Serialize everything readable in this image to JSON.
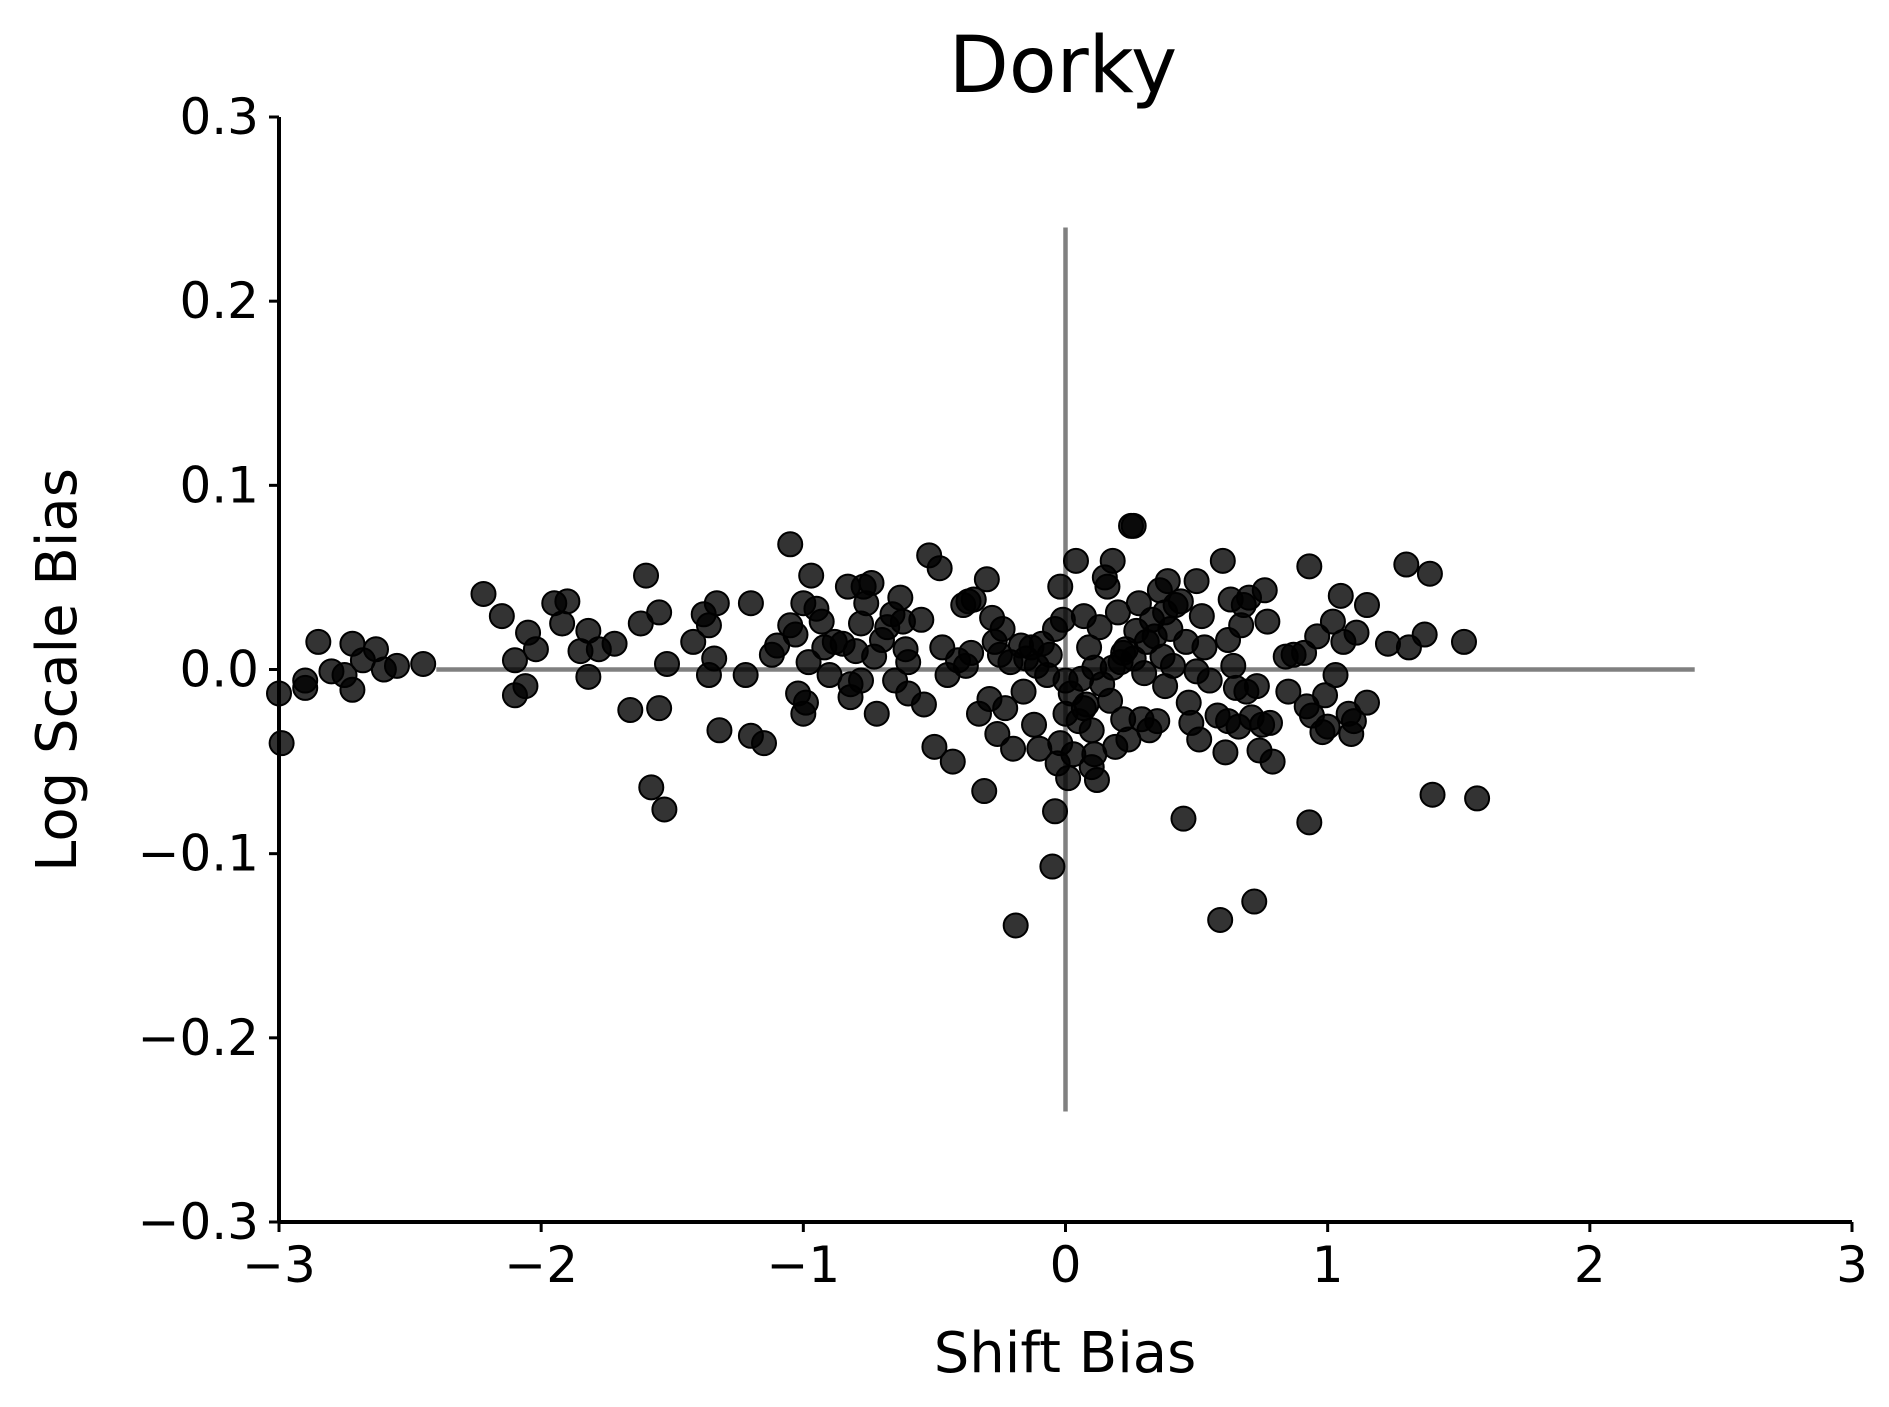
{
  "chart_data": {
    "type": "scatter",
    "title": "Dorky",
    "xlabel": "Shift Bias",
    "ylabel": "Log Scale Bias",
    "xlim": [
      -3,
      3
    ],
    "ylim": [
      -0.3,
      0.3
    ],
    "xticks": [
      -3,
      -2,
      -1,
      0,
      1,
      2,
      3
    ],
    "xtick_labels": [
      "−3",
      "−2",
      "−1",
      "0",
      "1",
      "2",
      "3"
    ],
    "yticks": [
      0.3,
      0.2,
      0.1,
      0.0,
      -0.1,
      -0.2,
      -0.3
    ],
    "ytick_labels": [
      "0.3",
      "0.2",
      "0.1",
      "0.0",
      "−0.1",
      "−0.2",
      "−0.3"
    ],
    "grid": false,
    "reference_lines": {
      "horizontal": {
        "y": 0,
        "x_range": [
          -2.4,
          2.4
        ],
        "color": "#808080"
      },
      "vertical": {
        "x": 0,
        "y_range": [
          -0.24,
          0.24
        ],
        "color": "#808080"
      }
    },
    "marker_color": "#000000",
    "points": [
      [
        -3.0,
        -0.013
      ],
      [
        -2.99,
        -0.04
      ],
      [
        -2.9,
        -0.01
      ],
      [
        -2.9,
        -0.006
      ],
      [
        -2.85,
        0.015
      ],
      [
        -2.8,
        -0.001
      ],
      [
        -2.75,
        -0.003
      ],
      [
        -2.72,
        0.014
      ],
      [
        -2.72,
        -0.011
      ],
      [
        -2.68,
        0.005
      ],
      [
        -2.63,
        0.011
      ],
      [
        -2.6,
        0.0
      ],
      [
        -2.55,
        0.002
      ],
      [
        -2.45,
        0.003
      ],
      [
        -2.22,
        0.041
      ],
      [
        -2.15,
        0.029
      ],
      [
        -2.1,
        0.005
      ],
      [
        -2.1,
        -0.014
      ],
      [
        -2.06,
        -0.009
      ],
      [
        -2.05,
        0.02
      ],
      [
        -2.02,
        0.011
      ],
      [
        -1.95,
        0.036
      ],
      [
        -1.92,
        0.025
      ],
      [
        -1.9,
        0.037
      ],
      [
        -1.85,
        0.01
      ],
      [
        -1.82,
        0.021
      ],
      [
        -1.82,
        -0.004
      ],
      [
        -1.78,
        0.011
      ],
      [
        -1.72,
        0.014
      ],
      [
        -1.66,
        -0.022
      ],
      [
        -1.62,
        0.025
      ],
      [
        -1.6,
        0.051
      ],
      [
        -1.58,
        -0.064
      ],
      [
        -1.55,
        0.031
      ],
      [
        -1.55,
        -0.021
      ],
      [
        -1.53,
        -0.076
      ],
      [
        -1.52,
        0.003
      ],
      [
        -1.42,
        0.015
      ],
      [
        -1.38,
        0.03
      ],
      [
        -1.36,
        0.024
      ],
      [
        -1.36,
        -0.003
      ],
      [
        -1.34,
        0.006
      ],
      [
        -1.33,
        0.036
      ],
      [
        -1.32,
        -0.033
      ],
      [
        -1.22,
        -0.003
      ],
      [
        -1.2,
        0.036
      ],
      [
        -1.2,
        -0.036
      ],
      [
        -1.15,
        -0.04
      ],
      [
        -1.12,
        0.008
      ],
      [
        -1.1,
        0.013
      ],
      [
        -1.05,
        0.068
      ],
      [
        -1.05,
        0.024
      ],
      [
        -1.03,
        0.019
      ],
      [
        -1.02,
        -0.013
      ],
      [
        -1.0,
        0.036
      ],
      [
        -1.0,
        -0.024
      ],
      [
        -0.99,
        -0.018
      ],
      [
        -0.98,
        0.004
      ],
      [
        -0.97,
        0.051
      ],
      [
        -0.95,
        0.033
      ],
      [
        -0.93,
        0.026
      ],
      [
        -0.92,
        0.012
      ],
      [
        -0.9,
        -0.003
      ],
      [
        -0.88,
        0.015
      ],
      [
        -0.85,
        0.014
      ],
      [
        -0.83,
        0.045
      ],
      [
        -0.82,
        -0.008
      ],
      [
        -0.82,
        -0.015
      ],
      [
        -0.8,
        0.01
      ],
      [
        -0.78,
        0.025
      ],
      [
        -0.78,
        -0.006
      ],
      [
        -0.77,
        0.045
      ],
      [
        -0.76,
        0.036
      ],
      [
        -0.74,
        0.047
      ],
      [
        -0.73,
        0.007
      ],
      [
        -0.72,
        -0.024
      ],
      [
        -0.7,
        0.016
      ],
      [
        -0.68,
        0.023
      ],
      [
        -0.66,
        0.03
      ],
      [
        -0.65,
        -0.006
      ],
      [
        -0.63,
        0.039
      ],
      [
        -0.62,
        0.026
      ],
      [
        -0.61,
        0.011
      ],
      [
        -0.6,
        0.004
      ],
      [
        -0.6,
        -0.013
      ],
      [
        -0.55,
        0.027
      ],
      [
        -0.54,
        -0.019
      ],
      [
        -0.52,
        0.062
      ],
      [
        -0.5,
        -0.042
      ],
      [
        -0.48,
        0.055
      ],
      [
        -0.47,
        0.012
      ],
      [
        -0.45,
        -0.003
      ],
      [
        -0.43,
        -0.05
      ],
      [
        -0.41,
        0.005
      ],
      [
        -0.39,
        0.035
      ],
      [
        -0.38,
        0.002
      ],
      [
        -0.37,
        0.037
      ],
      [
        -0.36,
        0.009
      ],
      [
        -0.35,
        0.038
      ],
      [
        -0.33,
        -0.024
      ],
      [
        -0.31,
        -0.066
      ],
      [
        -0.3,
        0.049
      ],
      [
        -0.29,
        -0.016
      ],
      [
        -0.28,
        0.028
      ],
      [
        -0.27,
        0.015
      ],
      [
        -0.26,
        -0.035
      ],
      [
        -0.25,
        0.008
      ],
      [
        -0.24,
        0.022
      ],
      [
        -0.23,
        -0.021
      ],
      [
        -0.21,
        0.004
      ],
      [
        -0.2,
        -0.043
      ],
      [
        -0.19,
        -0.139
      ],
      [
        -0.17,
        0.013
      ],
      [
        -0.16,
        -0.012
      ],
      [
        -0.15,
        0.006
      ],
      [
        -0.13,
        0.012
      ],
      [
        -0.12,
        -0.03
      ],
      [
        -0.11,
        0.002
      ],
      [
        -0.1,
        -0.043
      ],
      [
        -0.09,
        0.014
      ],
      [
        -0.07,
        -0.003
      ],
      [
        -0.06,
        0.008
      ],
      [
        -0.05,
        -0.107
      ],
      [
        -0.04,
        -0.077
      ],
      [
        -0.04,
        0.022
      ],
      [
        -0.03,
        -0.051
      ],
      [
        -0.02,
        0.045
      ],
      [
        -0.02,
        -0.04
      ],
      [
        -0.01,
        0.027
      ],
      [
        0.0,
        -0.024
      ],
      [
        0.0,
        -0.006
      ],
      [
        0.01,
        -0.059
      ],
      [
        0.02,
        -0.013
      ],
      [
        0.03,
        -0.046
      ],
      [
        0.04,
        0.059
      ],
      [
        0.05,
        -0.028
      ],
      [
        0.06,
        -0.005
      ],
      [
        0.07,
        0.029
      ],
      [
        0.07,
        -0.021
      ],
      [
        0.08,
        -0.019
      ],
      [
        0.09,
        0.012
      ],
      [
        0.1,
        -0.033
      ],
      [
        0.1,
        -0.053
      ],
      [
        0.11,
        -0.046
      ],
      [
        0.11,
        0.001
      ],
      [
        0.12,
        -0.06
      ],
      [
        0.13,
        0.023
      ],
      [
        0.14,
        -0.008
      ],
      [
        0.15,
        0.05
      ],
      [
        0.16,
        0.045
      ],
      [
        0.17,
        -0.017
      ],
      [
        0.18,
        0.059
      ],
      [
        0.18,
        0.001
      ],
      [
        0.19,
        -0.042
      ],
      [
        0.2,
        0.031
      ],
      [
        0.21,
        0.004
      ],
      [
        0.22,
        -0.027
      ],
      [
        0.22,
        0.009
      ],
      [
        0.23,
        0.011
      ],
      [
        0.24,
        -0.038
      ],
      [
        0.25,
        0.078
      ],
      [
        0.26,
        0.078
      ],
      [
        0.26,
        0.006
      ],
      [
        0.27,
        0.021
      ],
      [
        0.28,
        0.036
      ],
      [
        0.29,
        -0.027
      ],
      [
        0.3,
        -0.002
      ],
      [
        0.31,
        0.015
      ],
      [
        0.32,
        -0.033
      ],
      [
        0.33,
        0.027
      ],
      [
        0.34,
        0.018
      ],
      [
        0.35,
        -0.028
      ],
      [
        0.36,
        0.043
      ],
      [
        0.37,
        0.007
      ],
      [
        0.38,
        0.031
      ],
      [
        0.38,
        -0.009
      ],
      [
        0.39,
        0.048
      ],
      [
        0.4,
        0.022
      ],
      [
        0.41,
        0.002
      ],
      [
        0.42,
        0.035
      ],
      [
        0.44,
        0.037
      ],
      [
        0.45,
        -0.081
      ],
      [
        0.46,
        0.015
      ],
      [
        0.47,
        -0.018
      ],
      [
        0.48,
        -0.029
      ],
      [
        0.5,
        0.048
      ],
      [
        0.5,
        -0.001
      ],
      [
        0.51,
        -0.038
      ],
      [
        0.52,
        0.029
      ],
      [
        0.53,
        0.012
      ],
      [
        0.55,
        -0.006
      ],
      [
        0.58,
        -0.025
      ],
      [
        0.59,
        -0.136
      ],
      [
        0.6,
        0.059
      ],
      [
        0.61,
        -0.045
      ],
      [
        0.62,
        0.016
      ],
      [
        0.62,
        -0.028
      ],
      [
        0.63,
        0.038
      ],
      [
        0.64,
        0.002
      ],
      [
        0.65,
        -0.01
      ],
      [
        0.66,
        -0.031
      ],
      [
        0.67,
        0.024
      ],
      [
        0.68,
        0.035
      ],
      [
        0.69,
        -0.012
      ],
      [
        0.7,
        0.039
      ],
      [
        0.71,
        -0.026
      ],
      [
        0.72,
        -0.126
      ],
      [
        0.73,
        -0.009
      ],
      [
        0.74,
        -0.044
      ],
      [
        0.75,
        -0.03
      ],
      [
        0.76,
        0.043
      ],
      [
        0.77,
        0.026
      ],
      [
        0.78,
        -0.029
      ],
      [
        0.79,
        -0.05
      ],
      [
        0.84,
        0.007
      ],
      [
        0.85,
        -0.012
      ],
      [
        0.87,
        0.008
      ],
      [
        0.91,
        0.009
      ],
      [
        0.92,
        -0.02
      ],
      [
        0.93,
        0.056
      ],
      [
        0.93,
        -0.083
      ],
      [
        0.94,
        -0.025
      ],
      [
        0.96,
        0.018
      ],
      [
        0.98,
        -0.034
      ],
      [
        0.99,
        -0.014
      ],
      [
        1.0,
        -0.031
      ],
      [
        1.02,
        0.026
      ],
      [
        1.03,
        -0.003
      ],
      [
        1.05,
        0.04
      ],
      [
        1.06,
        0.015
      ],
      [
        1.08,
        -0.024
      ],
      [
        1.09,
        -0.035
      ],
      [
        1.1,
        -0.028
      ],
      [
        1.11,
        0.02
      ],
      [
        1.15,
        0.035
      ],
      [
        1.15,
        -0.018
      ],
      [
        1.23,
        0.014
      ],
      [
        1.3,
        0.057
      ],
      [
        1.31,
        0.012
      ],
      [
        1.37,
        0.019
      ],
      [
        1.39,
        0.052
      ],
      [
        1.4,
        -0.068
      ],
      [
        1.52,
        0.015
      ],
      [
        1.57,
        -0.07
      ]
    ]
  }
}
